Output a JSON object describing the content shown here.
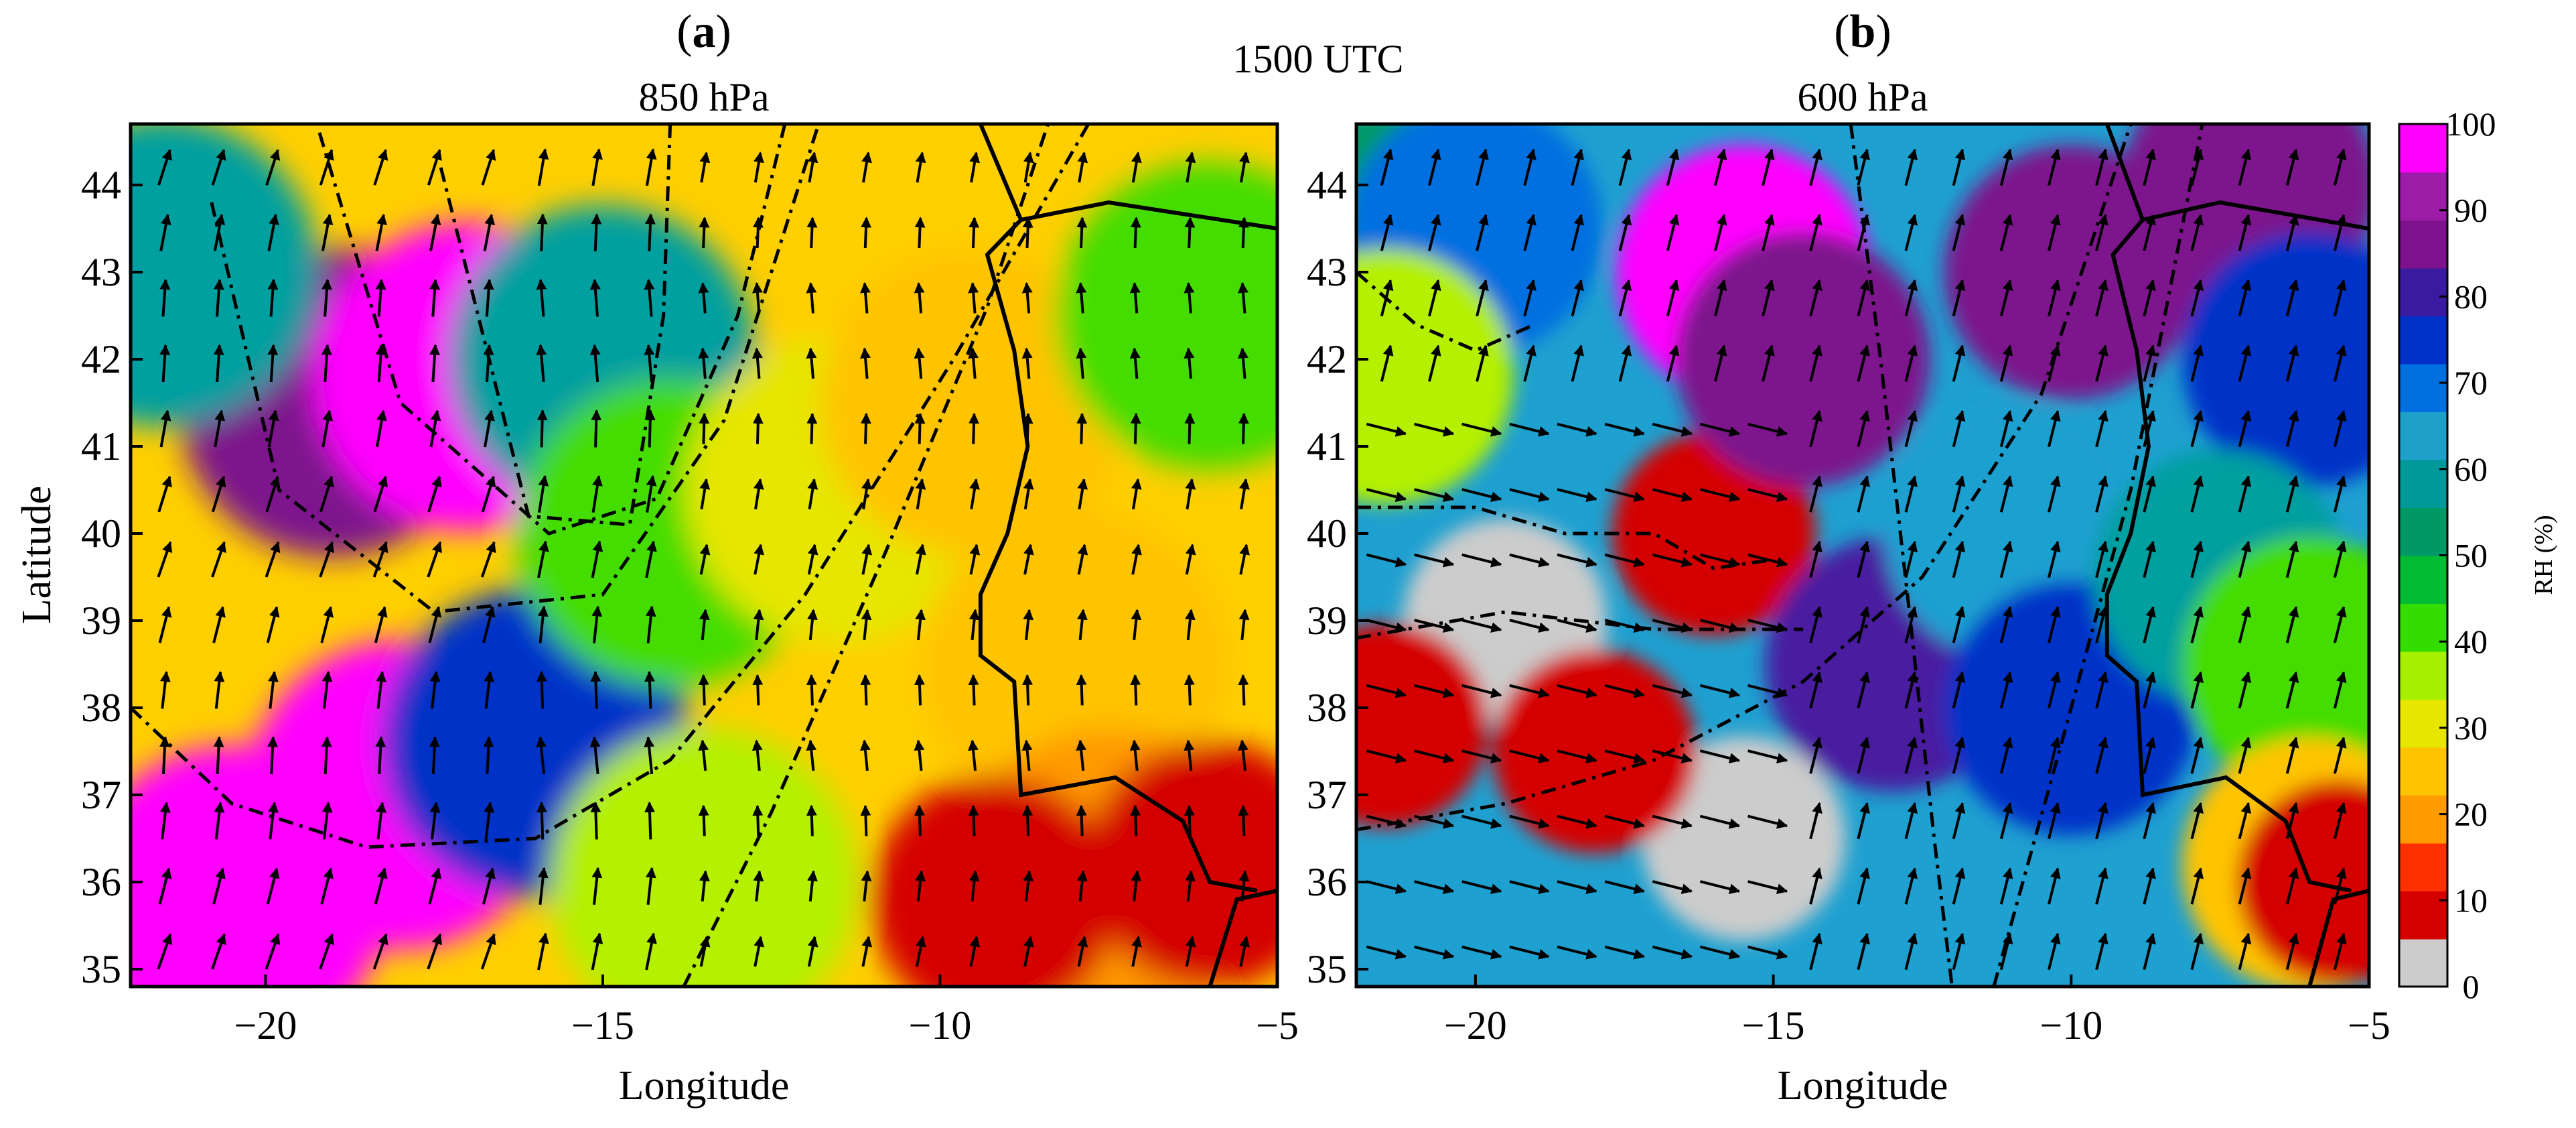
{
  "figure": {
    "time_label": "1500 UTC",
    "colorbar": {
      "title": "RH (%)",
      "ticks": [
        0,
        10,
        20,
        30,
        40,
        50,
        60,
        70,
        80,
        90,
        100
      ],
      "colors": [
        "#cccccc",
        "#d40000",
        "#ff3000",
        "#ff9a00",
        "#ffc400",
        "#e6e600",
        "#a6ef00",
        "#33dd00",
        "#00bb33",
        "#009966",
        "#009999",
        "#1ea0c8",
        "#0070e0",
        "#0030c8",
        "#3a1aa0",
        "#7d138c",
        "#9c1ca8",
        "#ff00ff"
      ]
    }
  },
  "chart_data": [
    {
      "type": "heatmap",
      "panel_letter": "a",
      "title": "850 hPa",
      "xlabel": "Longitude",
      "ylabel": "Latitude",
      "xlim": [
        -22,
        -5
      ],
      "ylim": [
        34.8,
        44.7
      ],
      "xticks": [
        -20,
        -15,
        -10,
        -5
      ],
      "yticks": [
        35,
        36,
        37,
        38,
        39,
        40,
        41,
        42,
        43,
        44
      ],
      "field": "RH (%)",
      "regions": [
        {
          "rh": 95,
          "x": -19.0,
          "y": 41.5
        },
        {
          "rh": 100,
          "x": -17.0,
          "y": 41.8
        },
        {
          "rh": 100,
          "x": -18.0,
          "y": 37.0
        },
        {
          "rh": 100,
          "x": -20.5,
          "y": 35.8
        },
        {
          "rh": 85,
          "x": -16.0,
          "y": 37.6
        },
        {
          "rh": 70,
          "x": -21.5,
          "y": 43.0
        },
        {
          "rh": 65,
          "x": -15.0,
          "y": 42.0
        },
        {
          "rh": 45,
          "x": -14.0,
          "y": 40.0
        },
        {
          "rh": 40,
          "x": -13.5,
          "y": 36.0
        },
        {
          "rh": 35,
          "x": -11.5,
          "y": 40.5
        },
        {
          "rh": 30,
          "x": -9.5,
          "y": 41.5
        },
        {
          "rh": 28,
          "x": -8.0,
          "y": 38.5
        },
        {
          "rh": 22,
          "x": -7.5,
          "y": 36.0
        },
        {
          "rh": 45,
          "x": -6.0,
          "y": 42.5
        },
        {
          "rh": 12,
          "x": -6.0,
          "y": 36.2
        },
        {
          "rh": 12,
          "x": -9.2,
          "y": 35.8
        }
      ],
      "trajectories": [
        [
          [
            -22,
            38.0
          ],
          [
            -20.5,
            36.9
          ],
          [
            -18.5,
            36.4
          ],
          [
            -16.0,
            36.5
          ],
          [
            -14.0,
            37.4
          ],
          [
            -12.0,
            39.3
          ],
          [
            -9.8,
            42.0
          ],
          [
            -7.8,
            44.7
          ]
        ],
        [
          [
            -20.8,
            43.8
          ],
          [
            -19.8,
            40.5
          ],
          [
            -17.5,
            39.1
          ],
          [
            -15.0,
            39.3
          ],
          [
            -13.2,
            41.3
          ],
          [
            -11.8,
            44.7
          ]
        ],
        [
          [
            -19.2,
            44.6
          ],
          [
            -18.0,
            41.5
          ],
          [
            -15.8,
            40.0
          ],
          [
            -14.2,
            40.4
          ],
          [
            -13.0,
            42.5
          ],
          [
            -12.3,
            44.7
          ]
        ],
        [
          [
            -17.4,
            44.2
          ],
          [
            -16.1,
            40.2
          ],
          [
            -14.6,
            40.1
          ],
          [
            -14.1,
            42.5
          ],
          [
            -14.0,
            44.7
          ]
        ],
        [
          [
            -13.8,
            34.8
          ],
          [
            -12.5,
            36.8
          ],
          [
            -10.8,
            39.8
          ],
          [
            -9.3,
            42.6
          ],
          [
            -8.4,
            44.7
          ]
        ]
      ],
      "wind_flow": "southerly"
    },
    {
      "type": "heatmap",
      "panel_letter": "b",
      "title": "600 hPa",
      "xlabel": "Longitude",
      "ylabel": "",
      "xlim": [
        -22,
        -5
      ],
      "ylim": [
        34.8,
        44.7
      ],
      "xticks": [
        -20,
        -15,
        -10,
        -5
      ],
      "yticks": [
        35,
        36,
        37,
        38,
        39,
        40,
        41,
        42,
        43,
        44
      ],
      "field": "RH (%)",
      "regions": [
        {
          "rh": 60,
          "x": -21.0,
          "y": 43.5
        },
        {
          "rh": 80,
          "x": -20.0,
          "y": 43.5
        },
        {
          "rh": 40,
          "x": -21.5,
          "y": 41.8
        },
        {
          "rh": 5,
          "x": -19.5,
          "y": 39.0
        },
        {
          "rh": 5,
          "x": -15.5,
          "y": 36.5
        },
        {
          "rh": 12,
          "x": -18.0,
          "y": 37.5
        },
        {
          "rh": 12,
          "x": -21.5,
          "y": 37.8
        },
        {
          "rh": 12,
          "x": -16.0,
          "y": 40.0
        },
        {
          "rh": 100,
          "x": -15.5,
          "y": 43.0
        },
        {
          "rh": 95,
          "x": -14.5,
          "y": 42.0
        },
        {
          "rh": 90,
          "x": -13.0,
          "y": 38.5
        },
        {
          "rh": 75,
          "x": -11.0,
          "y": 40.0
        },
        {
          "rh": 85,
          "x": -10.0,
          "y": 38.0
        },
        {
          "rh": 95,
          "x": -10.0,
          "y": 43.0
        },
        {
          "rh": 95,
          "x": -7.0,
          "y": 44.0
        },
        {
          "rh": 85,
          "x": -6.0,
          "y": 42.0
        },
        {
          "rh": 70,
          "x": -7.5,
          "y": 39.5
        },
        {
          "rh": 45,
          "x": -6.0,
          "y": 38.5
        },
        {
          "rh": 30,
          "x": -6.0,
          "y": 36.2
        },
        {
          "rh": 12,
          "x": -5.5,
          "y": 36.0
        }
      ],
      "trajectories": [
        [
          [
            -22,
            43.0
          ],
          [
            -21.0,
            42.4
          ],
          [
            -20.0,
            42.1
          ],
          [
            -19.0,
            42.4
          ]
        ],
        [
          [
            -22,
            40.3
          ],
          [
            -20.0,
            40.3
          ],
          [
            -18.5,
            40.0
          ],
          [
            -17.0,
            40.0
          ],
          [
            -16.0,
            39.6
          ],
          [
            -15.0,
            39.7
          ]
        ],
        [
          [
            -22,
            38.8
          ],
          [
            -19.5,
            39.1
          ],
          [
            -17.0,
            38.9
          ],
          [
            -15.5,
            38.9
          ],
          [
            -14.5,
            38.9
          ]
        ],
        [
          [
            -22,
            36.6
          ],
          [
            -19.5,
            36.9
          ],
          [
            -17.0,
            37.4
          ],
          [
            -14.5,
            38.3
          ],
          [
            -12.5,
            39.5
          ],
          [
            -10.5,
            41.6
          ],
          [
            -9.0,
            44.7
          ]
        ],
        [
          [
            -13.7,
            44.7
          ],
          [
            -13.2,
            42.0
          ],
          [
            -12.7,
            39.0
          ],
          [
            -12.3,
            36.5
          ],
          [
            -12.0,
            34.8
          ]
        ],
        [
          [
            -11.3,
            34.8
          ],
          [
            -10.2,
            37.5
          ],
          [
            -9.0,
            40.5
          ],
          [
            -7.8,
            44.7
          ]
        ]
      ],
      "wind_flow": "westerly in dry region, southerly east of -15"
    }
  ]
}
